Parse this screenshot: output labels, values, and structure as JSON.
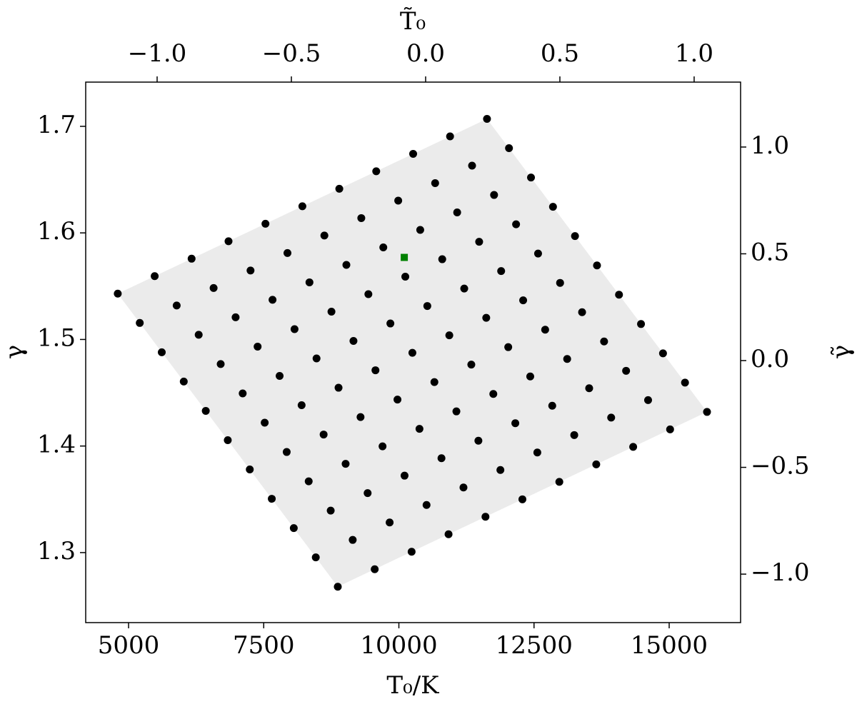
{
  "chart_data": {
    "type": "scatter",
    "xlabel": "T₀/K",
    "ylabel": "γ",
    "x2label": "T̃₀",
    "y2label": "γ̃",
    "xlim": [
      4207,
      16321
    ],
    "ylim": [
      1.2343,
      1.7415
    ],
    "xticks": [
      5000,
      7500,
      10000,
      12500,
      15000
    ],
    "yticks": [
      1.3,
      1.4,
      1.5,
      1.6,
      1.7
    ],
    "x2lim": [
      -1.266,
      1.173
    ],
    "x2ticks": [
      {
        "value": -1,
        "label": "−1.0"
      },
      {
        "value": -0.5,
        "label": "−0.5"
      },
      {
        "value": 0,
        "label": "0.0"
      },
      0.5,
      {
        "value": 1,
        "label": "1.0"
      }
    ],
    "y2lim": [
      -1.227,
      1.304
    ],
    "y2ticks": [
      {
        "value": -1,
        "label": "−1.0"
      },
      {
        "value": -0.5,
        "label": "−0.5"
      },
      {
        "value": 0,
        "label": "0.0"
      },
      0.5,
      {
        "value": 1,
        "label": "1.0"
      }
    ],
    "region": {
      "x": [
        4800,
        11630,
        15700,
        8870
      ],
      "y": [
        1.543,
        1.707,
        1.432,
        1.268
      ],
      "color": "#ebebeb"
    },
    "series": [
      {
        "color": "#000000",
        "marker": "circle",
        "x": [
          4800,
          5207,
          5614,
          6021,
          6428,
          6835,
          7242,
          7649,
          8056,
          8463,
          8870,
          5483,
          5890,
          6297,
          6704,
          7111,
          7518,
          7925,
          8332,
          8739,
          9146,
          9553,
          6166,
          6573,
          6980,
          7387,
          7794,
          8201,
          8608,
          9015,
          9422,
          9829,
          10236,
          6849,
          7256,
          7663,
          8070,
          8477,
          8884,
          9291,
          9698,
          10105,
          10512,
          10919,
          7532,
          7939,
          8346,
          8753,
          9160,
          9567,
          9974,
          10381,
          10788,
          11195,
          11602,
          8215,
          8622,
          9029,
          9436,
          9843,
          10250,
          10657,
          11064,
          11471,
          11878,
          12285,
          8898,
          9305,
          9712,
          10119,
          10526,
          10933,
          11340,
          11747,
          12154,
          12561,
          12968,
          9581,
          9988,
          10395,
          10802,
          11209,
          11616,
          12023,
          12430,
          12837,
          13244,
          13651,
          10264,
          10671,
          11078,
          11485,
          11892,
          12299,
          12706,
          13113,
          13520,
          13927,
          14334,
          10947,
          11354,
          11761,
          12168,
          12575,
          12982,
          13389,
          13796,
          14203,
          14610,
          15017,
          11630,
          12037,
          12444,
          12851,
          13258,
          13665,
          14072,
          14479,
          14886,
          15293,
          15700
        ],
        "values": [
          1.543,
          1.5155,
          1.488,
          1.4605,
          1.433,
          1.4055,
          1.378,
          1.3505,
          1.323,
          1.2955,
          1.268,
          1.5594,
          1.5319,
          1.5044,
          1.4769,
          1.4494,
          1.4219,
          1.3944,
          1.3669,
          1.3394,
          1.3119,
          1.2844,
          1.5758,
          1.5483,
          1.5208,
          1.4933,
          1.4658,
          1.4383,
          1.4108,
          1.3833,
          1.3558,
          1.3283,
          1.3008,
          1.5922,
          1.5647,
          1.5372,
          1.5097,
          1.4822,
          1.4547,
          1.4272,
          1.3997,
          1.3722,
          1.3447,
          1.3172,
          1.6086,
          1.5811,
          1.5536,
          1.5261,
          1.4986,
          1.4711,
          1.4436,
          1.4161,
          1.3886,
          1.3611,
          1.3336,
          1.625,
          1.5975,
          1.57,
          1.5425,
          1.515,
          1.4875,
          1.46,
          1.4325,
          1.405,
          1.3775,
          1.35,
          1.6414,
          1.6139,
          1.5864,
          1.5589,
          1.5314,
          1.5039,
          1.4764,
          1.4489,
          1.4214,
          1.3939,
          1.3664,
          1.6578,
          1.6303,
          1.6028,
          1.5753,
          1.5478,
          1.5203,
          1.4928,
          1.4653,
          1.4378,
          1.4103,
          1.3828,
          1.6742,
          1.6467,
          1.6192,
          1.5917,
          1.5642,
          1.5367,
          1.5092,
          1.4817,
          1.4542,
          1.4267,
          1.3992,
          1.6906,
          1.6631,
          1.6356,
          1.6081,
          1.5806,
          1.5531,
          1.5256,
          1.4981,
          1.4706,
          1.4431,
          1.4156,
          1.707,
          1.6795,
          1.652,
          1.6245,
          1.597,
          1.5695,
          1.542,
          1.5145,
          1.487,
          1.4595,
          1.432
        ]
      },
      {
        "color": "#008000",
        "marker": "square",
        "x": [
          10100
        ],
        "values": [
          1.577
        ]
      }
    ]
  }
}
